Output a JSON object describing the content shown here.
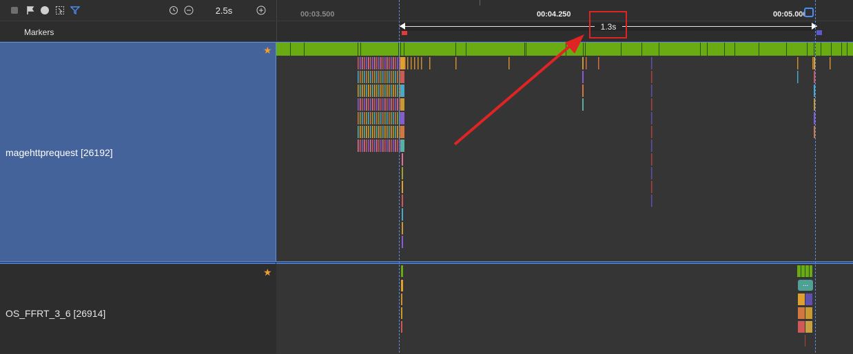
{
  "toolbar": {
    "zoom_value": "2.5s",
    "icons": [
      "stop-icon",
      "flag-icon",
      "compass-icon",
      "select-icon",
      "filter-icon",
      "reset-icon",
      "zoom-out-icon",
      "zoom-in-icon"
    ]
  },
  "markers": {
    "label": "Markers"
  },
  "timeline": {
    "ticks": [
      {
        "label": "00:03.500",
        "dim": true
      },
      {
        "label": "00:04.250",
        "dim": false
      },
      {
        "label": "00:05.000",
        "dim": false
      }
    ],
    "range_label": "1.3s"
  },
  "processes": [
    {
      "name": "magehttprequest [26192]",
      "starred": true
    },
    {
      "name": "OS_FFRT_3_6 [26914]",
      "starred": true
    }
  ],
  "annotation": {
    "color": "#e02424"
  },
  "colors": {
    "selected_bg": "#44639b",
    "track_green": "#6aaa13",
    "accent_blue": "#5b8ee6"
  }
}
